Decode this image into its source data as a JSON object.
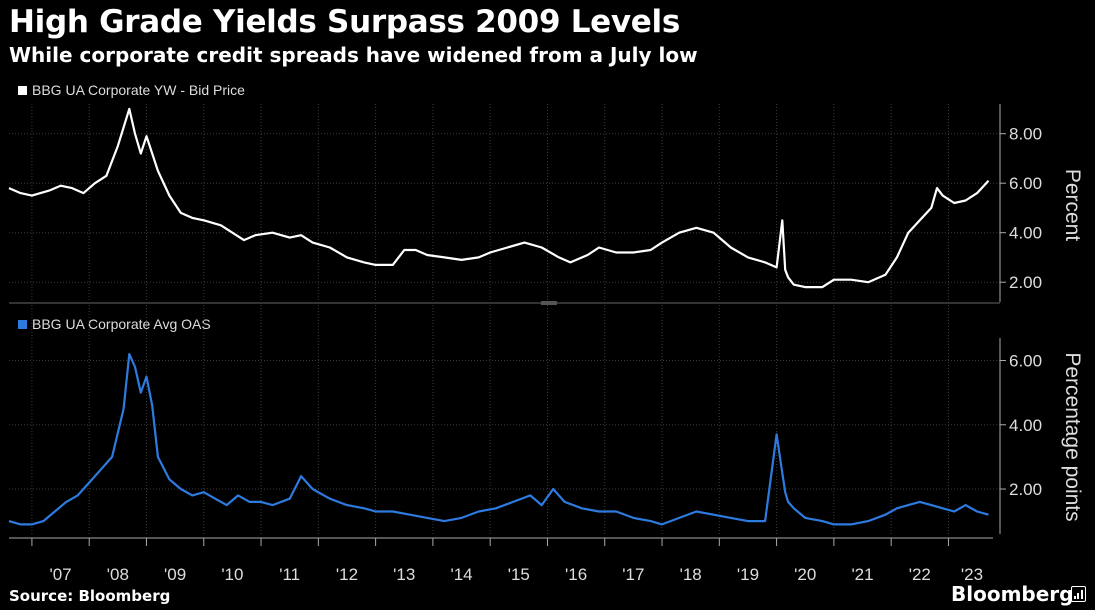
{
  "title": "High Grade Yields Surpass 2009 Levels",
  "subtitle": "While corporate credit spreads have widened from a July low",
  "source": "Source: Bloomberg",
  "brand": "Bloomberg",
  "colors": {
    "background": "#000000",
    "series_yield": "#ffffff",
    "series_oas": "#2e7be0",
    "grid": "#3a3a3a"
  },
  "chart_data": [
    {
      "type": "line",
      "legend": "BBG UA Corporate YW - Bid Price",
      "ylabel": "Percent",
      "ylim": [
        1.2,
        9.2
      ],
      "yticks": [
        "2.00",
        "4.00",
        "6.00",
        "8.00"
      ],
      "ytick_values": [
        2,
        4,
        6,
        8
      ],
      "series": [
        {
          "name": "BBG UA Corporate YW - Bid Price",
          "x": [
            2006.6,
            2006.8,
            2007.0,
            2007.3,
            2007.5,
            2007.7,
            2007.9,
            2008.1,
            2008.3,
            2008.5,
            2008.7,
            2008.8,
            2008.9,
            2009.0,
            2009.1,
            2009.2,
            2009.4,
            2009.6,
            2009.8,
            2010.0,
            2010.3,
            2010.5,
            2010.7,
            2010.9,
            2011.2,
            2011.5,
            2011.7,
            2011.9,
            2012.2,
            2012.5,
            2012.8,
            2013.0,
            2013.3,
            2013.5,
            2013.7,
            2013.9,
            2014.2,
            2014.5,
            2014.8,
            2015.0,
            2015.3,
            2015.6,
            2015.9,
            2016.2,
            2016.4,
            2016.7,
            2016.9,
            2017.2,
            2017.5,
            2017.8,
            2018.0,
            2018.3,
            2018.6,
            2018.9,
            2019.2,
            2019.5,
            2019.8,
            2020.0,
            2020.1,
            2020.15,
            2020.2,
            2020.3,
            2020.5,
            2020.8,
            2021.0,
            2021.3,
            2021.6,
            2021.9,
            2022.1,
            2022.3,
            2022.5,
            2022.7,
            2022.8,
            2022.9,
            2023.1,
            2023.3,
            2023.5,
            2023.7
          ],
          "values": [
            5.8,
            5.6,
            5.5,
            5.7,
            5.9,
            5.8,
            5.6,
            6.0,
            6.3,
            7.5,
            9.0,
            8.0,
            7.2,
            7.9,
            7.2,
            6.5,
            5.5,
            4.8,
            4.6,
            4.5,
            4.3,
            4.0,
            3.7,
            3.9,
            4.0,
            3.8,
            3.9,
            3.6,
            3.4,
            3.0,
            2.8,
            2.7,
            2.7,
            3.3,
            3.3,
            3.1,
            3.0,
            2.9,
            3.0,
            3.2,
            3.4,
            3.6,
            3.4,
            3.0,
            2.8,
            3.1,
            3.4,
            3.2,
            3.2,
            3.3,
            3.6,
            4.0,
            4.2,
            4.0,
            3.4,
            3.0,
            2.8,
            2.6,
            4.5,
            2.5,
            2.2,
            1.9,
            1.8,
            1.8,
            2.1,
            2.1,
            2.0,
            2.3,
            3.0,
            4.0,
            4.5,
            5.0,
            5.8,
            5.5,
            5.2,
            5.3,
            5.6,
            6.1
          ]
        }
      ]
    },
    {
      "type": "line",
      "legend": "BBG UA Corporate Avg OAS",
      "ylabel": "Percentage points",
      "ylim": [
        0.6,
        6.7
      ],
      "yticks": [
        "2.00",
        "4.00",
        "6.00"
      ],
      "ytick_values": [
        2,
        4,
        6
      ],
      "series": [
        {
          "name": "BBG UA Corporate Avg OAS",
          "x": [
            2006.6,
            2006.8,
            2007.0,
            2007.2,
            2007.4,
            2007.6,
            2007.8,
            2008.0,
            2008.2,
            2008.4,
            2008.6,
            2008.7,
            2008.8,
            2008.9,
            2009.0,
            2009.1,
            2009.2,
            2009.4,
            2009.6,
            2009.8,
            2010.0,
            2010.2,
            2010.4,
            2010.6,
            2010.8,
            2011.0,
            2011.2,
            2011.5,
            2011.7,
            2011.9,
            2012.2,
            2012.5,
            2012.8,
            2013.0,
            2013.3,
            2013.6,
            2013.9,
            2014.2,
            2014.5,
            2014.8,
            2015.1,
            2015.4,
            2015.7,
            2015.9,
            2016.1,
            2016.3,
            2016.6,
            2016.9,
            2017.2,
            2017.5,
            2017.8,
            2018.0,
            2018.3,
            2018.6,
            2018.9,
            2019.2,
            2019.5,
            2019.8,
            2020.0,
            2020.1,
            2020.15,
            2020.2,
            2020.3,
            2020.5,
            2020.8,
            2021.0,
            2021.3,
            2021.6,
            2021.9,
            2022.1,
            2022.3,
            2022.5,
            2022.7,
            2022.9,
            2023.1,
            2023.3,
            2023.5,
            2023.7
          ],
          "values": [
            1.0,
            0.9,
            0.9,
            1.0,
            1.3,
            1.6,
            1.8,
            2.2,
            2.6,
            3.0,
            4.5,
            6.2,
            5.8,
            5.0,
            5.5,
            4.6,
            3.0,
            2.3,
            2.0,
            1.8,
            1.9,
            1.7,
            1.5,
            1.8,
            1.6,
            1.6,
            1.5,
            1.7,
            2.4,
            2.0,
            1.7,
            1.5,
            1.4,
            1.3,
            1.3,
            1.2,
            1.1,
            1.0,
            1.1,
            1.3,
            1.4,
            1.6,
            1.8,
            1.5,
            2.0,
            1.6,
            1.4,
            1.3,
            1.3,
            1.1,
            1.0,
            0.9,
            1.1,
            1.3,
            1.2,
            1.1,
            1.0,
            1.0,
            3.7,
            2.5,
            1.9,
            1.6,
            1.4,
            1.1,
            1.0,
            0.9,
            0.9,
            1.0,
            1.2,
            1.4,
            1.5,
            1.6,
            1.5,
            1.4,
            1.3,
            1.5,
            1.3,
            1.2
          ]
        }
      ]
    }
  ],
  "xaxis": {
    "range": [
      2006.6,
      2023.9
    ],
    "ticks": [
      "'07",
      "'08",
      "'09",
      "'10",
      "'11",
      "'12",
      "'13",
      "'14",
      "'15",
      "'16",
      "'17",
      "'18",
      "'19",
      "'20",
      "'21",
      "'22",
      "'23"
    ],
    "tick_years": [
      2007,
      2008,
      2009,
      2010,
      2011,
      2012,
      2013,
      2014,
      2015,
      2016,
      2017,
      2018,
      2019,
      2020,
      2021,
      2022,
      2023
    ]
  }
}
